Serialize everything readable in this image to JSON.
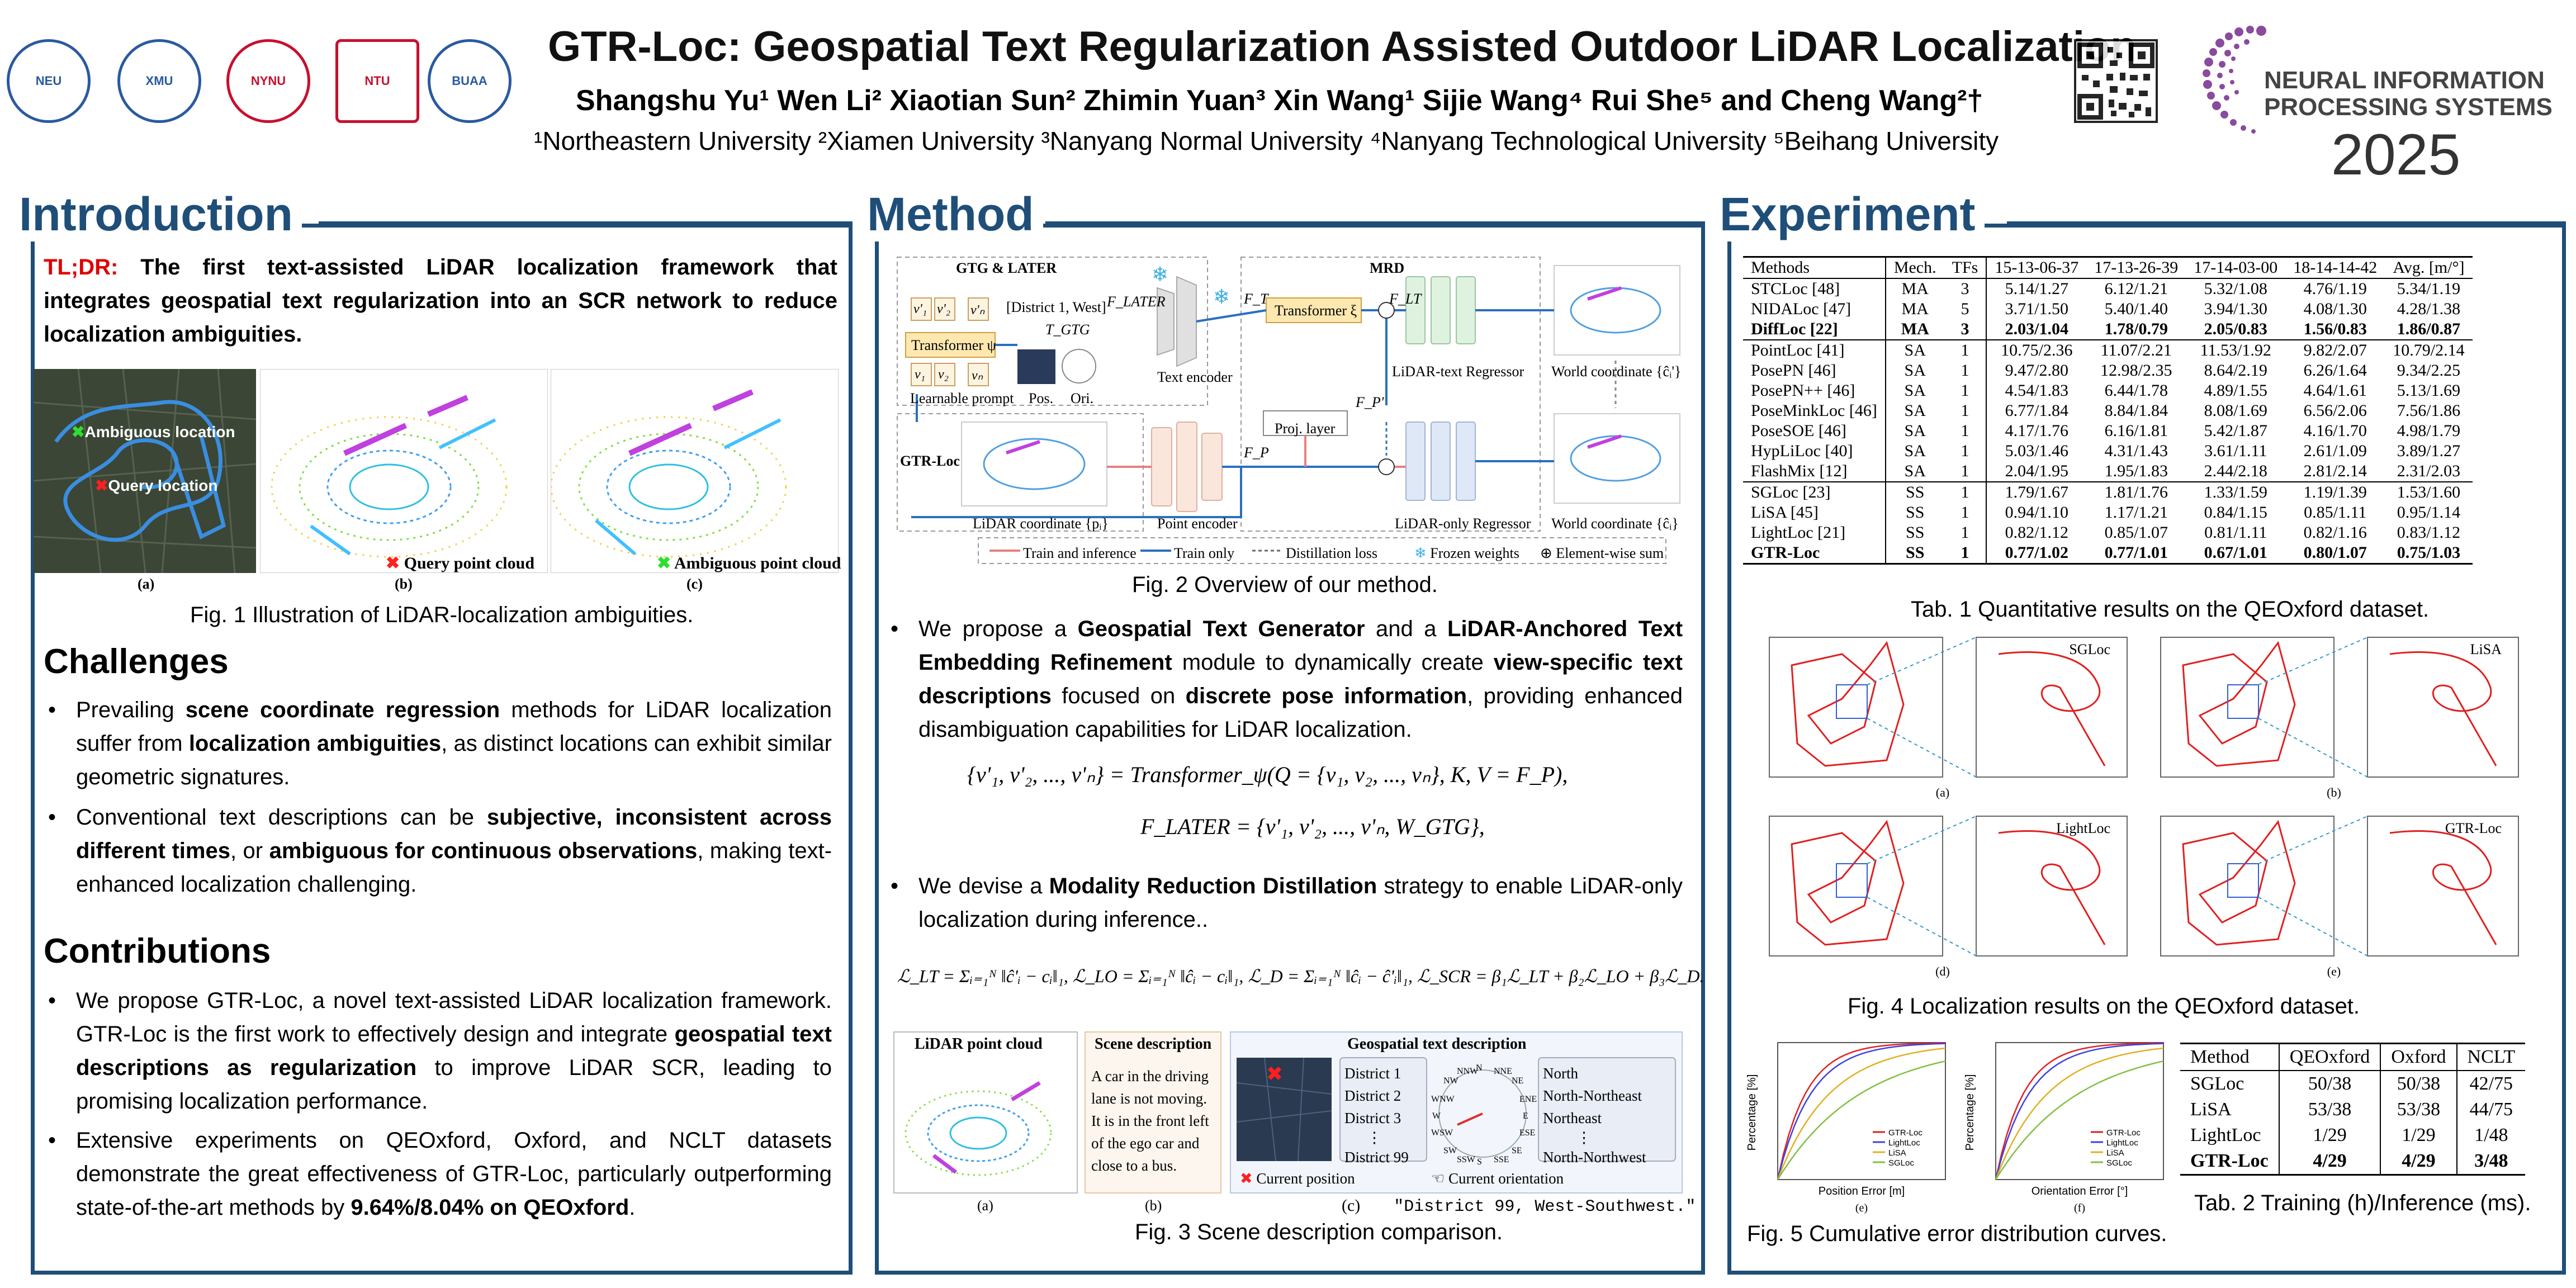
{
  "header": {
    "title": "GTR-Loc: Geospatial Text Regularization Assisted Outdoor LiDAR Localization",
    "authors": "Shangshu Yu¹ Wen Li² Xiaotian Sun² Zhimin Yuan³ Xin Wang¹ Sijie Wang⁴ Rui She⁵ and Cheng Wang²†",
    "affiliations": "¹Northeastern University ²Xiamen University ³Nanyang Normal University ⁴Nanyang Technological University ⁵Beihang University",
    "conference_line1": "NEURAL INFORMATION",
    "conference_line2": "PROCESSING SYSTEMS",
    "conference_year": "2025",
    "logos": [
      "logo-northeastern",
      "logo-xiamen",
      "logo-nanyang-normal",
      "logo-ntu",
      "logo-beihang"
    ]
  },
  "intro": {
    "heading": "Introduction",
    "tldr_label": "TL;DR:",
    "tldr": "The first text-assisted LiDAR localization framework that integrates geospatial text regularization into an SCR network to reduce localization ambiguities.",
    "fig1_labels": {
      "ambiguous": "Ambiguous location",
      "query": "Query location",
      "query_cloud": "Query point cloud",
      "amb_cloud": "Ambiguous point cloud",
      "a": "(a)",
      "b": "(b)",
      "c": "(c)"
    },
    "fig1_caption": "Fig. 1 Illustration of LiDAR-localization ambiguities.",
    "challenges_heading": "Challenges",
    "ch1_a": "Prevailing ",
    "ch1_b": "scene coordinate regression",
    "ch1_c": " methods for LiDAR localization suffer from ",
    "ch1_d": "localization ambiguities",
    "ch1_e": ", as distinct locations can exhibit similar geometric signatures.",
    "ch2_a": "Conventional text descriptions can be ",
    "ch2_b": "subjective, inconsistent across different times",
    "ch2_c": ", or ",
    "ch2_d": "ambiguous for continuous observations",
    "ch2_e": ", making text-enhanced localization challenging.",
    "contributions_heading": "Contributions",
    "co1_a": "We propose GTR-Loc, a novel text-assisted LiDAR localization framework. GTR-Loc is the first work to effectively design and integrate ",
    "co1_b": "geospatial text descriptions as regularization",
    "co1_c": " to improve LiDAR SCR, leading to promising localization performance.",
    "co2_a": "Extensive experiments on QEOxford, Oxford, and NCLT datasets demonstrate the great effectiveness of GTR-Loc, particularly outperforming state-of-the-art methods by ",
    "co2_b": "9.64%/8.04% on QEOxford",
    "co2_c": "."
  },
  "method": {
    "heading": "Method",
    "fig2": {
      "gtg_later": "GTG & LATER",
      "mrd": "MRD",
      "gtr_loc": "GTR-Loc",
      "transformer_psi": "Transformer ψ",
      "transformer_xi": "Transformer ξ",
      "learnable_prompt": "Learnable prompt",
      "pos": "Pos.",
      "ori": "Ori.",
      "district": "[District 1, West]",
      "t_gtg": "T_GTG",
      "f_later": "F_LATER",
      "f_t": "F_T",
      "f_p": "F_P",
      "f_p2": "F_P'",
      "f_lt": "F_LT",
      "text_encoder": "Text encoder",
      "proj_layer": "Proj. layer",
      "point_encoder": "Point encoder",
      "lt_reg": "LiDAR-text Regressor",
      "lo_reg": "LiDAR-only Regressor",
      "world1": "World coordinate {ĉᵢ'}",
      "world2": "World coordinate {ĉᵢ}",
      "lidar_coord": "LiDAR coordinate {pᵢ}",
      "legend": [
        "Train and inference",
        "Train only",
        "Distillation loss",
        "Frozen weights",
        "Element-wise sum"
      ],
      "v_tokens": [
        "v'₁",
        "v'₂",
        "v'ₙ",
        "v₁",
        "v₂",
        "vₙ"
      ]
    },
    "fig2_caption": "Fig. 2 Overview of our method.",
    "b1_a": "We propose a ",
    "b1_b": "Geospatial Text Generator",
    "b1_c": " and a ",
    "b1_d": "LiDAR-Anchored Text Embedding Refinement",
    "b1_e": " module to dynamically create ",
    "b1_f": "view-specific text descriptions",
    "b1_g": " focused on ",
    "b1_h": "discrete pose information",
    "b1_i": ", providing enhanced disambiguation capabilities for LiDAR localization.",
    "eq1": "{v'₁, v'₂, ..., v'ₙ} = Transformer_ψ(Q = {v₁, v₂, ..., vₙ}, K, V = F_P),",
    "eq2": "F_LATER = {v'₁, v'₂, ..., v'ₙ, W_GTG},",
    "b2_a": "We devise a ",
    "b2_b": "Modality Reduction Distillation",
    "b2_c": " strategy to enable LiDAR-only localization during inference..",
    "eq3": "ℒ_LT = Σᵢ₌₁ᴺ ‖ĉ'ᵢ − cᵢ‖₁,  ℒ_LO = Σᵢ₌₁ᴺ ‖ĉᵢ − cᵢ‖₁,  ℒ_D = Σᵢ₌₁ᴺ ‖ĉᵢ − ĉ'ᵢ‖₁,  ℒ_SCR = β₁ℒ_LT + β₂ℒ_LO + β₃ℒ_D.",
    "fig3": {
      "lidar_title": "LiDAR point cloud",
      "scene_title": "Scene description",
      "geo_title": "Geospatial text description",
      "scene_text": "A car in the driving lane is not moving. It is in the front left of the ego car and close to a bus.",
      "districts": [
        "District 1",
        "District 2",
        "District 3",
        "⋮",
        "District 99"
      ],
      "orients": [
        "North",
        "North-Northeast",
        "Northeast",
        "⋮",
        "North-Northwest"
      ],
      "compass": [
        "N",
        "NNE",
        "NE",
        "ENE",
        "E",
        "ESE",
        "SE",
        "SSE",
        "S",
        "SSW",
        "SW",
        "WSW",
        "W",
        "WNW",
        "NW",
        "NNW"
      ],
      "cur_pos": "Current position",
      "cur_ori": "Current orientation",
      "a": "(a)",
      "b": "(b)",
      "c": "(c)",
      "quote": "\"District 99, West-Southwest.\""
    },
    "fig3_caption": "Fig. 3 Scene description comparison."
  },
  "experiment": {
    "heading": "Experiment",
    "table1": {
      "header": [
        "Methods",
        "Mech.",
        "TFs",
        "15-13-06-37",
        "17-13-26-39",
        "17-14-03-00",
        "18-14-14-42",
        "Avg. [m/°]"
      ],
      "groups": [
        [
          [
            "STCLoc [48]",
            "MA",
            "3",
            "5.14/1.27",
            "6.12/1.21",
            "5.32/1.08",
            "4.76/1.19",
            "5.34/1.19"
          ],
          [
            "NIDALoc [47]",
            "MA",
            "5",
            "3.71/1.50",
            "5.40/1.40",
            "3.94/1.30",
            "4.08/1.30",
            "4.28/1.38"
          ],
          [
            "DiffLoc [22]",
            "MA",
            "3",
            "2.03/1.04",
            "1.78/0.79",
            "2.05/0.83",
            "1.56/0.83",
            "1.86/0.87"
          ]
        ],
        [
          [
            "PointLoc [41]",
            "SA",
            "1",
            "10.75/2.36",
            "11.07/2.21",
            "11.53/1.92",
            "9.82/2.07",
            "10.79/2.14"
          ],
          [
            "PosePN [46]",
            "SA",
            "1",
            "9.47/2.80",
            "12.98/2.35",
            "8.64/2.19",
            "6.26/1.64",
            "9.34/2.25"
          ],
          [
            "PosePN++ [46]",
            "SA",
            "1",
            "4.54/1.83",
            "6.44/1.78",
            "4.89/1.55",
            "4.64/1.61",
            "5.13/1.69"
          ],
          [
            "PoseMinkLoc [46]",
            "SA",
            "1",
            "6.77/1.84",
            "8.84/1.84",
            "8.08/1.69",
            "6.56/2.06",
            "7.56/1.86"
          ],
          [
            "PoseSOE [46]",
            "SA",
            "1",
            "4.17/1.76",
            "6.16/1.81",
            "5.42/1.87",
            "4.16/1.70",
            "4.98/1.79"
          ],
          [
            "HypLiLoc [40]",
            "SA",
            "1",
            "5.03/1.46",
            "4.31/1.43",
            "3.61/1.11",
            "2.61/1.09",
            "3.89/1.27"
          ],
          [
            "FlashMix [12]",
            "SA",
            "1",
            "2.04/1.95",
            "1.95/1.83",
            "2.44/2.18",
            "2.81/2.14",
            "2.31/2.03"
          ]
        ],
        [
          [
            "SGLoc [23]",
            "SS",
            "1",
            "1.79/1.67",
            "1.81/1.76",
            "1.33/1.59",
            "1.19/1.39",
            "1.53/1.60"
          ],
          [
            "LiSA [45]",
            "SS",
            "1",
            "0.94/1.10",
            "1.17/1.21",
            "0.84/1.15",
            "0.85/1.11",
            "0.95/1.14"
          ],
          [
            "LightLoc [21]",
            "SS",
            "1",
            "0.82/1.12",
            "0.85/1.07",
            "0.81/1.11",
            "0.82/1.16",
            "0.83/1.12"
          ],
          [
            "GTR-Loc",
            "SS",
            "1",
            "0.77/1.02",
            "0.77/1.01",
            "0.67/1.01",
            "0.80/1.07",
            "0.75/1.03"
          ]
        ]
      ]
    },
    "tab1_caption": "Tab. 1 Quantitative results on the QEOxford dataset.",
    "fig4_labels": [
      "SGLoc",
      "LiSA",
      "LightLoc",
      "GTR-Loc"
    ],
    "fig4_sub": [
      "(a)",
      "(b)",
      "(d)",
      "(e)"
    ],
    "fig4_caption": "Fig. 4 Localization results on the QEOxford dataset.",
    "fig5": {
      "ylabel": "Percentage [%]",
      "xlabel1": "Position Error [m]",
      "xlabel2": "Orientation Error [°]",
      "legend": [
        "GTR-Loc",
        "LightLoc",
        "LiSA",
        "SGLoc"
      ],
      "e": "(e)",
      "f": "(f)"
    },
    "fig5_caption": "Fig. 5 Cumulative error distribution curves.",
    "table2": {
      "header": [
        "Method",
        "QEOxford",
        "Oxford",
        "NCLT"
      ],
      "rows": [
        [
          "SGLoc",
          "50/38",
          "50/38",
          "42/75"
        ],
        [
          "LiSA",
          "53/38",
          "53/38",
          "44/75"
        ],
        [
          "LightLoc",
          "1/29",
          "1/29",
          "1/48"
        ],
        [
          "GTR-Loc",
          "4/29",
          "4/29",
          "3/48"
        ]
      ]
    },
    "tab2_caption": "Tab. 2 Training (h)/Inference (ms).",
    "colors": {
      "accent": "#1f4e79",
      "tldr": "#e00000",
      "traj": "#e02020",
      "gt": "#3060d0"
    }
  }
}
